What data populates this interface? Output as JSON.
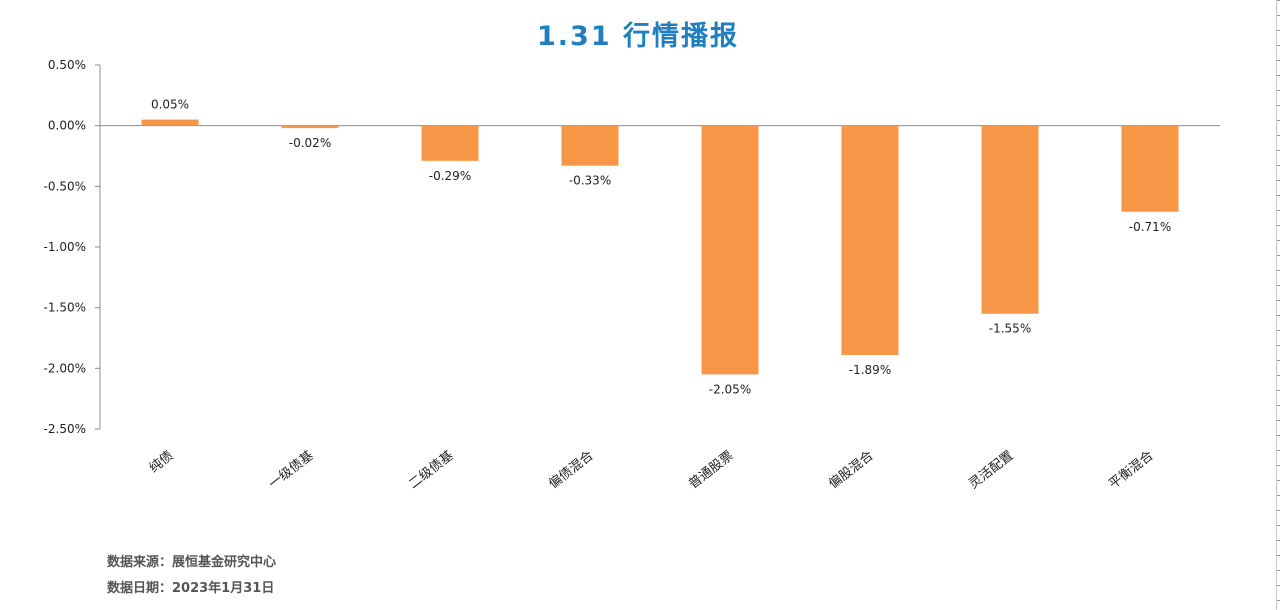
{
  "chart_data": {
    "type": "bar",
    "title": "1.31 行情播报",
    "categories": [
      "纯债",
      "一级债基",
      "二级债基",
      "偏债混合",
      "普通股票",
      "偏股混合",
      "灵活配置",
      "平衡混合"
    ],
    "values": [
      0.05,
      -0.02,
      -0.29,
      -0.33,
      -2.05,
      -1.89,
      -1.55,
      -0.71
    ],
    "data_labels": [
      "0.05%",
      "-0.02%",
      "-0.29%",
      "-0.33%",
      "-2.05%",
      "-1.89%",
      "-1.55%",
      "-0.71%"
    ],
    "ylim": [
      -2.5,
      0.5
    ],
    "yticks": [
      0.5,
      0.0,
      -0.5,
      -1.0,
      -1.5,
      -2.0,
      -2.5
    ],
    "ytick_labels": [
      "0.50%",
      "0.00%",
      "-0.50%",
      "-1.00%",
      "-1.50%",
      "-2.00%",
      "-2.50%"
    ],
    "xlabel": "",
    "ylabel": "",
    "bar_color": "#f79646",
    "grid": false,
    "legend": "none"
  },
  "footer": {
    "source": "数据来源：展恒基金研究中心",
    "date": "数据日期：2023年1月31日"
  },
  "colors": {
    "title": "#1f7fbf",
    "bar": "#f79646"
  }
}
